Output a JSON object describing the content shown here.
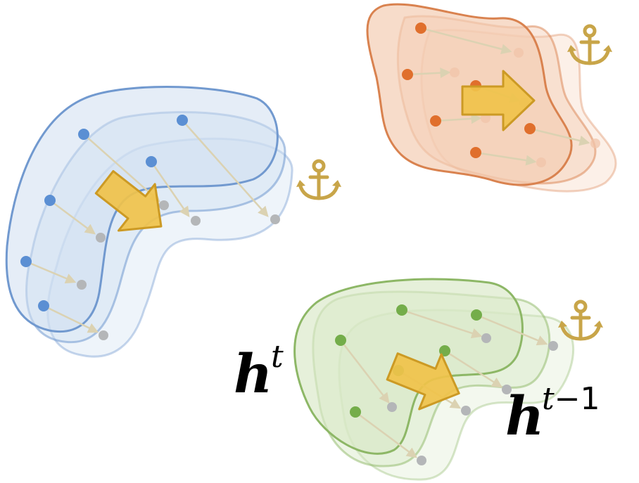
{
  "labels": {
    "current_base": "h",
    "current_sup": "t",
    "previous_base": "h",
    "previous_sup_var": "t",
    "previous_sup_rest": "−1"
  },
  "colors": {
    "blue_fill": "#cfdff1",
    "blue_stroke": "#7199cf",
    "blue_point": "#5b8fd3",
    "orange_fill": "#f4cdb3",
    "orange_stroke": "#d9824f",
    "orange_point": "#e06f2c",
    "green_fill": "#d8e8c6",
    "green_stroke": "#8db766",
    "green_point": "#74ad4a",
    "ghost_point": "#b4b6b8",
    "link_line": "#dbd2b2",
    "arrow_fill": "#f0c24a",
    "arrow_stroke": "#cc9a24",
    "anchor": "#c8a549"
  },
  "icons": [
    "anchor-icon",
    "shift-arrow-icon"
  ]
}
